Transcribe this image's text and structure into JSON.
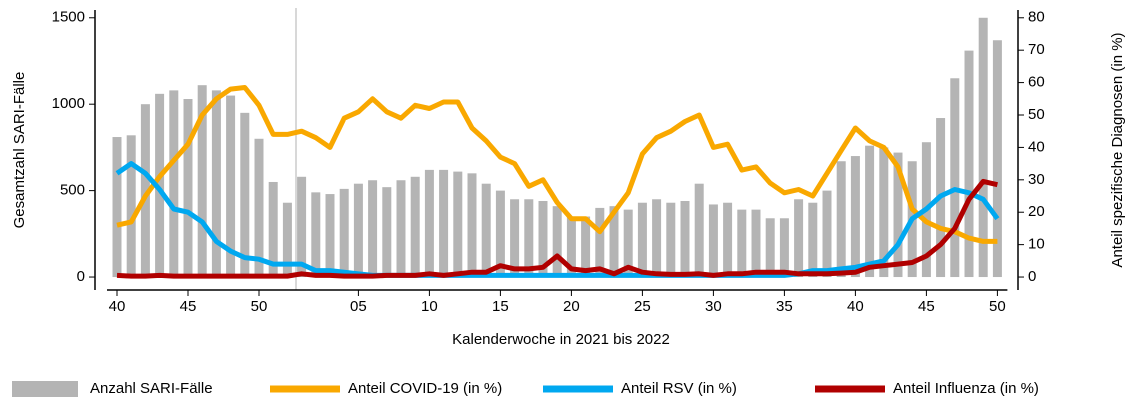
{
  "chart_data": {
    "type": "combo",
    "xlabel": "Kalenderwoche in 2021 bis 2022",
    "ylabel": "Gesamtzahl SARI-Fälle",
    "y2label": "Anteil spezifische Diagnosen (in %)",
    "categories": [
      "40",
      null,
      null,
      null,
      null,
      "45",
      null,
      null,
      null,
      null,
      "50",
      null,
      null,
      null,
      null,
      null,
      null,
      "05",
      null,
      null,
      null,
      null,
      "10",
      null,
      null,
      null,
      null,
      "15",
      null,
      null,
      null,
      null,
      "20",
      null,
      null,
      null,
      null,
      "25",
      null,
      null,
      null,
      null,
      "30",
      null,
      null,
      null,
      null,
      "35",
      null,
      null,
      null,
      null,
      "40",
      null,
      null,
      null,
      null,
      "45",
      null,
      null,
      null,
      null,
      "50"
    ],
    "ylim": [
      -75,
      1545
    ],
    "yticks": [
      0,
      500,
      1000,
      1500
    ],
    "y2lim": [
      -4,
      82.4
    ],
    "y2ticks": [
      0,
      10,
      20,
      30,
      40,
      50,
      60,
      70,
      80
    ],
    "legend": "bottom",
    "series": [
      {
        "name": "Anzahl SARI-Fälle",
        "type": "bar",
        "color": "#b4b4b4",
        "values": [
          810,
          820,
          1000,
          1060,
          1080,
          1030,
          1110,
          1080,
          1050,
          950,
          800,
          550,
          430,
          580,
          490,
          480,
          510,
          540,
          560,
          520,
          560,
          580,
          620,
          620,
          610,
          600,
          540,
          500,
          450,
          450,
          440,
          410,
          350,
          350,
          400,
          410,
          390,
          430,
          450,
          430,
          440,
          540,
          420,
          430,
          390,
          390,
          340,
          340,
          450,
          430,
          500,
          670,
          700,
          760,
          750,
          720,
          670,
          780,
          920,
          1150,
          1310,
          1500,
          1370
        ]
      },
      {
        "name": "Anteil COVID-19 (in %)",
        "type": "line",
        "axis": "y2",
        "color": "#f9a800",
        "values": [
          16,
          17,
          25,
          31,
          36,
          41,
          50,
          55,
          58,
          58.5,
          53,
          44,
          44,
          45,
          43,
          40,
          49,
          51,
          55,
          51,
          49,
          53,
          52,
          54,
          54,
          46,
          42,
          37,
          35,
          28,
          30,
          23,
          18,
          18,
          14,
          20,
          26,
          38,
          43,
          45,
          48,
          50,
          40,
          41,
          33,
          34,
          29,
          26,
          27,
          25,
          32,
          39,
          46,
          42,
          40,
          34,
          21,
          17,
          15,
          14,
          12,
          11,
          11
        ]
      },
      {
        "name": "Anteil RSV (in %)",
        "type": "line",
        "axis": "y2",
        "color": "#00a8f0",
        "values": [
          32,
          35,
          32,
          27,
          21,
          20,
          17,
          11,
          8,
          6,
          5.5,
          4,
          4,
          4,
          2,
          2,
          1.5,
          1,
          0.5,
          0.5,
          0.5,
          0.5,
          0.5,
          0.5,
          0.5,
          0.5,
          0.5,
          0.5,
          0.5,
          0.5,
          0.5,
          0.5,
          0.5,
          0.5,
          0.5,
          0.5,
          0.5,
          0.5,
          0.5,
          0.5,
          0.5,
          0.5,
          0.5,
          0.5,
          0.5,
          0.5,
          0.5,
          0.5,
          1,
          2,
          2,
          2.5,
          3,
          4,
          5,
          10,
          18,
          21,
          25,
          27,
          26,
          24,
          18
        ]
      },
      {
        "name": "Anteil Influenza (in %)",
        "type": "line",
        "axis": "y2",
        "color": "#b00000",
        "values": [
          0.5,
          0.3,
          0.3,
          0.5,
          0.3,
          0.3,
          0.3,
          0.3,
          0.3,
          0.3,
          0.3,
          0.3,
          0.3,
          1,
          0.5,
          0.5,
          0.3,
          0.3,
          0.3,
          0.5,
          0.5,
          0.5,
          1,
          0.5,
          1,
          1.5,
          1.5,
          3.5,
          2.5,
          2.5,
          3,
          6.5,
          2.5,
          2,
          2.5,
          1,
          3,
          1.5,
          1,
          0.8,
          0.8,
          1,
          0.5,
          1,
          1,
          1.5,
          1.5,
          1.5,
          1,
          1,
          1,
          1.2,
          1.5,
          3,
          3.5,
          4,
          4.5,
          6.5,
          10,
          15,
          24,
          29.5,
          28.5
        ]
      }
    ]
  }
}
